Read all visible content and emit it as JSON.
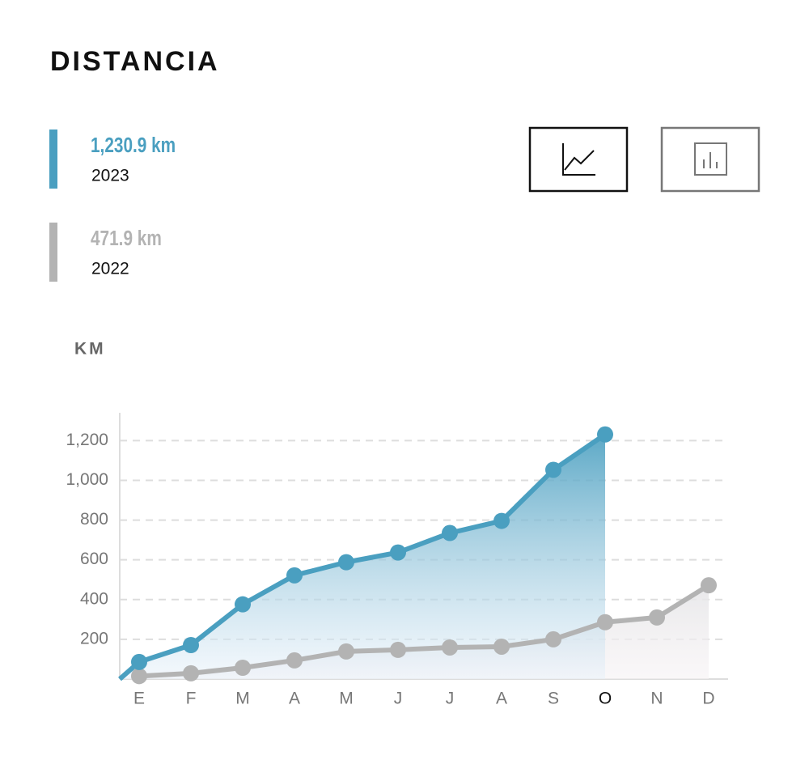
{
  "chart_data": {
    "type": "line",
    "title": "DISTANCIA",
    "y_label": "KM",
    "categories": [
      "E",
      "F",
      "M",
      "A",
      "M",
      "J",
      "J",
      "A",
      "S",
      "O",
      "N",
      "D"
    ],
    "highlight_category": 9,
    "series": [
      {
        "name": "2023",
        "color": "#4a9fc0",
        "total_label": "1,230.9 km",
        "values": [
          86,
          171,
          376,
          522,
          588,
          637,
          735,
          796,
          1053,
          1230.9,
          null,
          null
        ]
      },
      {
        "name": "2022",
        "color": "#b3b3b3",
        "total_label": "471.9 km",
        "values": [
          15,
          29,
          57,
          94,
          139,
          147,
          159,
          163,
          200,
          286,
          310,
          471.9
        ]
      }
    ],
    "ylim": [
      0,
      1340
    ],
    "yticks": [
      200,
      400,
      600,
      800,
      {
        "value": 1000,
        "label": "1,000"
      },
      {
        "value": 1200,
        "label": "1,200"
      }
    ],
    "grid": true
  }
}
